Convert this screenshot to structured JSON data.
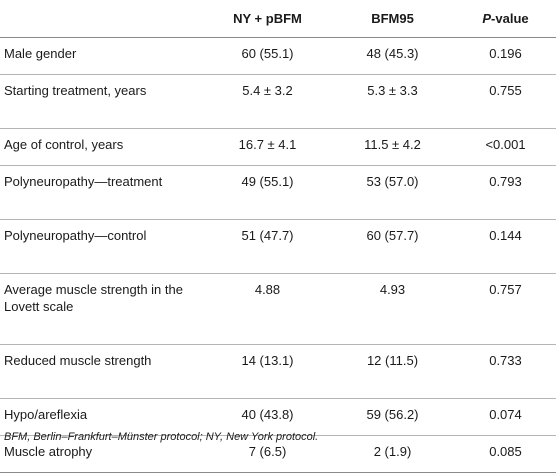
{
  "table": {
    "headers": [
      "",
      "NY + pBFM",
      "BFM95",
      "P",
      "-value"
    ],
    "rows": [
      {
        "label": "Male gender",
        "ny": "60 (55.1)",
        "bfm": "48 (45.3)",
        "p": "0.196"
      },
      {
        "label": "Starting treatment, years",
        "ny": "5.4 ± 3.2",
        "bfm": "5.3 ± 3.3",
        "p": "0.755"
      },
      {
        "label": "Age of control, years",
        "ny": "16.7 ± 4.1",
        "bfm": "11.5 ± 4.2",
        "p": "<0.001"
      },
      {
        "label": "Polyneuropathy—treatment",
        "ny": "49 (55.1)",
        "bfm": "53 (57.0)",
        "p": "0.793"
      },
      {
        "label": "Polyneuropathy—control",
        "ny": "51 (47.7)",
        "bfm": "60 (57.7)",
        "p": "0.144"
      },
      {
        "label": "Average muscle strength in the Lovett scale",
        "ny": "4.88",
        "bfm": "4.93",
        "p": "0.757"
      },
      {
        "label": "Reduced muscle strength",
        "ny": "14 (13.1)",
        "bfm": "12 (11.5)",
        "p": "0.733"
      },
      {
        "label": "Hypo/areflexia",
        "ny": "40 (43.8)",
        "bfm": "59 (56.2)",
        "p": "0.074"
      },
      {
        "label": "Muscle atrophy",
        "ny": "7 (6.5)",
        "bfm": "2 (1.9)",
        "p": "0.085"
      }
    ]
  },
  "footnote": "BFM, Berlin–Frankfurt–Münster protocol; NY, New York protocol."
}
